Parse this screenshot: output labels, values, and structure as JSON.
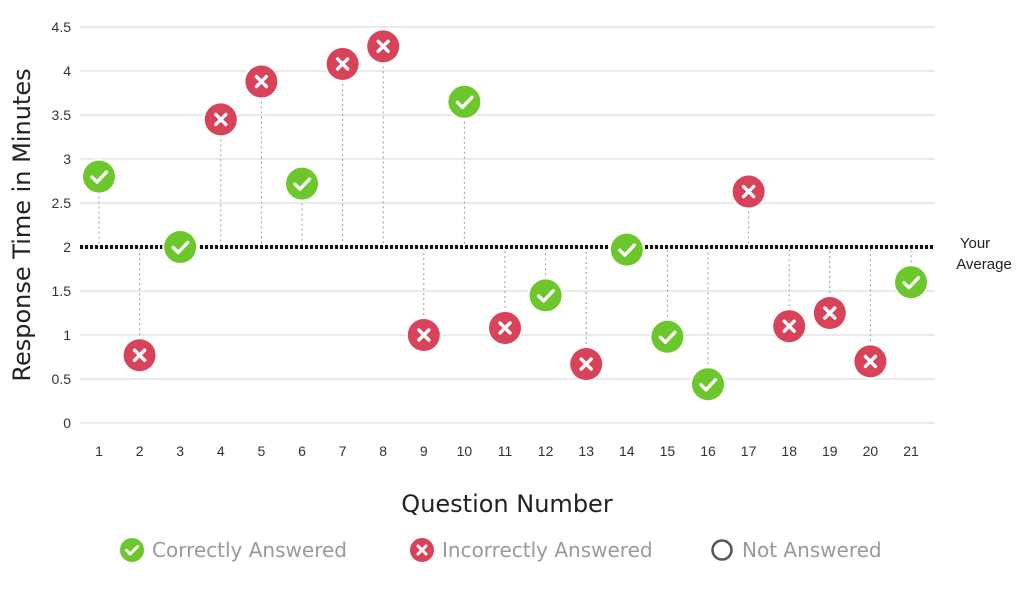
{
  "chart_data": {
    "type": "scatter",
    "xlabel": "Question Number",
    "ylabel": "Response Time in Minutes",
    "x": [
      1,
      2,
      3,
      4,
      5,
      6,
      7,
      8,
      9,
      10,
      11,
      12,
      13,
      14,
      15,
      16,
      17,
      18,
      19,
      20,
      21
    ],
    "y": [
      2.8,
      0.77,
      2.0,
      3.45,
      3.88,
      2.72,
      4.08,
      4.28,
      1.0,
      3.65,
      1.08,
      1.45,
      0.67,
      1.97,
      0.98,
      0.44,
      2.63,
      1.1,
      1.25,
      0.7,
      1.6
    ],
    "status": [
      "correct",
      "incorrect",
      "correct",
      "incorrect",
      "incorrect",
      "correct",
      "incorrect",
      "incorrect",
      "incorrect",
      "correct",
      "incorrect",
      "correct",
      "incorrect",
      "correct",
      "correct",
      "correct",
      "incorrect",
      "incorrect",
      "incorrect",
      "incorrect",
      "correct"
    ],
    "ylim": [
      0,
      4.5
    ],
    "yticks": [
      "0",
      "0.5",
      "1",
      "1.5",
      "2",
      "2.5",
      "3",
      "3.5",
      "4",
      "4.5"
    ],
    "ytick_values": [
      0,
      0.5,
      1,
      1.5,
      2,
      2.5,
      3,
      3.5,
      4,
      4.5
    ],
    "grid": true,
    "average": 2,
    "average_label_line1": "Your",
    "average_label_line2": "Average",
    "legend_position": "bottom",
    "legend": [
      {
        "key": "correct",
        "label": "Correctly Answered"
      },
      {
        "key": "incorrect",
        "label": "Incorrectly Answered"
      },
      {
        "key": "unanswered",
        "label": "Not Answered"
      }
    ],
    "colors": {
      "correct": "#6cc72a",
      "incorrect": "#d8435a",
      "unanswered": "#9a9a9a",
      "grid": "#d4d4d4",
      "average": "#111111",
      "stem": "#9b9b9b"
    },
    "icons": {
      "correct": "checkmark-icon",
      "incorrect": "x-mark-icon",
      "unanswered": "empty-circle-icon"
    }
  }
}
